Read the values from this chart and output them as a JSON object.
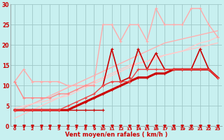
{
  "title": "",
  "xlabel": "Vent moyen/en rafales ( km/h )",
  "bg_color": "#c8f0f0",
  "grid_color": "#a0c8c8",
  "xlim": [
    -0.5,
    23.5
  ],
  "ylim": [
    0,
    30
  ],
  "yticks": [
    0,
    5,
    10,
    15,
    20,
    25,
    30
  ],
  "xticks": [
    0,
    1,
    2,
    3,
    4,
    5,
    6,
    7,
    8,
    9,
    10,
    11,
    12,
    13,
    14,
    15,
    16,
    17,
    18,
    19,
    20,
    21,
    22,
    23
  ],
  "lines": [
    {
      "x": [
        0,
        1,
        2,
        3,
        4,
        5,
        6,
        7,
        8,
        9,
        10
      ],
      "y": [
        4,
        4,
        4,
        4,
        4,
        4,
        4,
        4,
        4,
        4,
        4
      ],
      "color": "#cc0000",
      "lw": 1.0,
      "marker": "+",
      "ms": 3
    },
    {
      "x": [
        0,
        1,
        2,
        3,
        4,
        5,
        6,
        7,
        8,
        9,
        10,
        11,
        12,
        13,
        14,
        15,
        16,
        17,
        18,
        19,
        20,
        21,
        22,
        23
      ],
      "y": [
        4,
        4,
        4,
        4,
        4,
        4,
        4,
        5,
        6,
        7,
        8,
        9,
        10,
        11,
        12,
        12,
        13,
        13,
        14,
        14,
        14,
        14,
        14,
        12
      ],
      "color": "#cc0000",
      "lw": 2.2,
      "marker": "+",
      "ms": 3
    },
    {
      "x": [
        10,
        11,
        12,
        13,
        14,
        15,
        16,
        17,
        18,
        19,
        20,
        21,
        22,
        23
      ],
      "y": [
        10,
        19,
        11,
        12,
        19,
        14,
        18,
        14,
        14,
        14,
        14,
        19,
        14,
        12
      ],
      "color": "#cc0000",
      "lw": 1.2,
      "marker": "+",
      "ms": 3
    },
    {
      "x": [
        0,
        1,
        2,
        3,
        4,
        5,
        6,
        7,
        8,
        9,
        10,
        11,
        12,
        13,
        14,
        15,
        16,
        17,
        18,
        19,
        20,
        21,
        22,
        23
      ],
      "y": [
        4,
        4,
        4,
        4,
        4,
        4,
        5,
        6,
        7,
        8,
        10,
        11,
        11,
        11,
        14,
        14,
        14,
        14,
        14,
        14,
        14,
        14,
        14,
        12
      ],
      "color": "#ee4444",
      "lw": 1.0,
      "marker": "+",
      "ms": 3
    },
    {
      "x": [
        0,
        1,
        2,
        3,
        4,
        5,
        6,
        7,
        8,
        9,
        10,
        11,
        12,
        13,
        14,
        15,
        16,
        17,
        18,
        19,
        20,
        21,
        22,
        23
      ],
      "y": [
        3.5,
        4.5,
        5.5,
        6.5,
        7.5,
        8.5,
        9.5,
        10.5,
        11.5,
        12.5,
        13.5,
        14.5,
        15.5,
        16.5,
        17.5,
        18.5,
        19.5,
        20.5,
        21.0,
        21.5,
        22.0,
        22.5,
        23.0,
        23.5
      ],
      "color": "#ffb0b0",
      "lw": 1.0,
      "marker": null,
      "ms": 0
    },
    {
      "x": [
        0,
        1,
        2,
        3,
        4,
        5,
        6,
        7,
        8,
        9,
        10,
        11,
        12,
        13,
        14,
        15,
        16,
        17,
        18,
        19,
        20,
        21,
        22,
        23
      ],
      "y": [
        2.0,
        3.0,
        4.0,
        5.0,
        6.0,
        7.0,
        8.0,
        9.0,
        10.0,
        11.0,
        12.0,
        13.0,
        14.0,
        15.0,
        15.5,
        16.0,
        17.0,
        17.5,
        18.0,
        18.5,
        19.0,
        19.5,
        20.0,
        20.5
      ],
      "color": "#ffc8c8",
      "lw": 1.0,
      "marker": null,
      "ms": 0
    },
    {
      "x": [
        0,
        1,
        2,
        3,
        4,
        5,
        6,
        7,
        8,
        9,
        10,
        11,
        12,
        13,
        14,
        15,
        16,
        17,
        18,
        19,
        20,
        21,
        22,
        23
      ],
      "y": [
        11,
        14,
        11,
        11,
        11,
        11,
        10,
        10,
        10,
        11,
        25,
        25,
        21,
        25,
        25,
        21,
        29,
        25,
        25,
        25,
        29,
        29,
        25,
        22
      ],
      "color": "#ffaaaa",
      "lw": 1.0,
      "marker": "+",
      "ms": 3
    },
    {
      "x": [
        0,
        1,
        2,
        3,
        4,
        5,
        6,
        7,
        8,
        9
      ],
      "y": [
        11,
        7,
        7,
        7,
        7,
        8,
        8,
        9,
        10,
        10
      ],
      "color": "#ff8888",
      "lw": 1.0,
      "marker": "+",
      "ms": 3
    },
    {
      "x": [
        0,
        1,
        2,
        3,
        4,
        5,
        6,
        7,
        8,
        9,
        10,
        11,
        12,
        13,
        14,
        15,
        16,
        17,
        18,
        19,
        20,
        21,
        22,
        23
      ],
      "y": [
        4.5,
        5.0,
        5.5,
        6.0,
        6.5,
        7.0,
        7.5,
        8.5,
        9.5,
        10.5,
        11.5,
        12.5,
        13.5,
        14.5,
        15.5,
        16.0,
        16.5,
        17.5,
        18.0,
        18.5,
        19.5,
        20.5,
        21.0,
        22.0
      ],
      "color": "#ffcccc",
      "lw": 1.0,
      "marker": null,
      "ms": 0
    }
  ],
  "arrows": [
    0,
    1,
    2,
    3,
    4,
    5,
    6,
    7,
    8,
    9,
    10,
    11,
    12,
    13,
    14,
    15,
    16,
    17,
    18,
    19,
    20,
    21,
    22,
    23
  ]
}
